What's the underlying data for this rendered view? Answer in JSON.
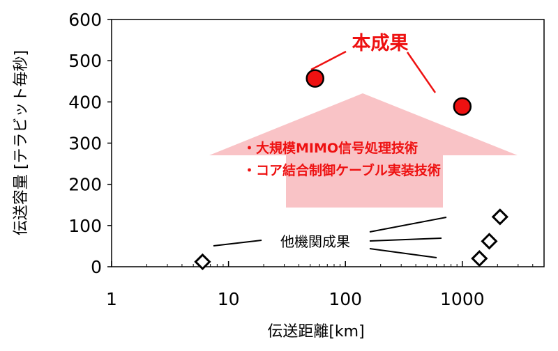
{
  "chart_data": {
    "type": "scatter",
    "title": "",
    "xlabel": "伝送距離[km]",
    "ylabel": "伝送容量 [テラビット毎秒]",
    "x_scale": "log",
    "xlim": [
      1,
      5000
    ],
    "ylim": [
      0,
      600
    ],
    "x_ticks": [
      {
        "value": 1,
        "label": "1"
      },
      {
        "value": 10,
        "label": "10"
      },
      {
        "value": 100,
        "label": "100"
      },
      {
        "value": 1000,
        "label": "1000"
      }
    ],
    "y_ticks": [
      {
        "value": 0,
        "label": "0"
      },
      {
        "value": 100,
        "label": "100"
      },
      {
        "value": 200,
        "label": "200"
      },
      {
        "value": 300,
        "label": "300"
      },
      {
        "value": 400,
        "label": "400"
      },
      {
        "value": 500,
        "label": "500"
      },
      {
        "value": 600,
        "label": "600"
      }
    ],
    "grid": false,
    "series": [
      {
        "name": "本成果",
        "marker": "circle",
        "color": "#ee1111",
        "points": [
          {
            "x": 55,
            "y": 457
          },
          {
            "x": 1000,
            "y": 389
          }
        ]
      },
      {
        "name": "他機関成果",
        "marker": "diamond",
        "color": "#000000",
        "points": [
          {
            "x": 6,
            "y": 12
          },
          {
            "x": 1400,
            "y": 20
          },
          {
            "x": 1700,
            "y": 62
          },
          {
            "x": 2100,
            "y": 121
          }
        ]
      }
    ],
    "annotations": {
      "own_label": "本成果",
      "other_label": "他機関成果",
      "tech_lines": [
        "・大規模MIMO信号処理技術",
        "・コア結合制御ケーブル実装技術"
      ]
    },
    "colors": {
      "own": "#ee1111",
      "arrow": "#f9c3c6",
      "axis": "#000000"
    }
  }
}
